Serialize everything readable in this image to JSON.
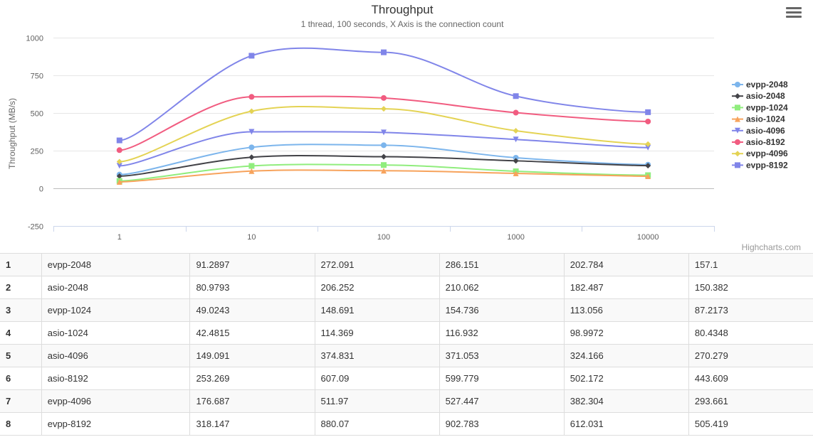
{
  "menu": {
    "icon": "hamburger-menu-icon"
  },
  "credits": "Highcharts.com",
  "chart_data": {
    "type": "line",
    "title": "Throughput",
    "subtitle": "1 thread, 100 seconds, X Axis is the connection count",
    "ylabel": "Throughput (MB/s)",
    "xlabel": "",
    "categories": [
      "1",
      "10",
      "100",
      "1000",
      "10000"
    ],
    "ylim": [
      -250,
      1000
    ],
    "yticks": [
      "-250",
      "0",
      "250",
      "500",
      "750",
      "1000"
    ],
    "grid": true,
    "legend_position": "right",
    "series": [
      {
        "name": "evpp-2048",
        "color": "#7cb5ec",
        "marker": "circle",
        "values": [
          91.2897,
          272.091,
          286.151,
          202.784,
          157.1
        ]
      },
      {
        "name": "asio-2048",
        "color": "#434348",
        "marker": "diamond",
        "values": [
          80.9793,
          206.252,
          210.062,
          182.487,
          150.382
        ]
      },
      {
        "name": "evpp-1024",
        "color": "#90ed7d",
        "marker": "square",
        "values": [
          49.0243,
          148.691,
          154.736,
          113.056,
          87.2173
        ]
      },
      {
        "name": "asio-1024",
        "color": "#f7a35c",
        "marker": "triangle",
        "values": [
          42.4815,
          114.369,
          116.932,
          98.9972,
          80.4348
        ]
      },
      {
        "name": "asio-4096",
        "color": "#8085e9",
        "marker": "triangle-down",
        "values": [
          149.091,
          374.831,
          371.053,
          324.166,
          270.279
        ]
      },
      {
        "name": "asio-8192",
        "color": "#f15c80",
        "marker": "circle",
        "values": [
          253.269,
          607.09,
          599.779,
          502.172,
          443.609
        ]
      },
      {
        "name": "evpp-4096",
        "color": "#e4d354",
        "marker": "diamond",
        "values": [
          176.687,
          511.97,
          527.447,
          382.304,
          293.661
        ]
      },
      {
        "name": "evpp-8192",
        "color": "#8085e9",
        "marker": "square",
        "values": [
          318.147,
          880.07,
          902.783,
          612.031,
          505.419
        ]
      }
    ]
  },
  "table": {
    "rows": [
      {
        "idx": "1",
        "name": "evpp-2048",
        "v": [
          "91.2897",
          "272.091",
          "286.151",
          "202.784",
          "157.1"
        ]
      },
      {
        "idx": "2",
        "name": "asio-2048",
        "v": [
          "80.9793",
          "206.252",
          "210.062",
          "182.487",
          "150.382"
        ]
      },
      {
        "idx": "3",
        "name": "evpp-1024",
        "v": [
          "49.0243",
          "148.691",
          "154.736",
          "113.056",
          "87.2173"
        ]
      },
      {
        "idx": "4",
        "name": "asio-1024",
        "v": [
          "42.4815",
          "114.369",
          "116.932",
          "98.9972",
          "80.4348"
        ]
      },
      {
        "idx": "5",
        "name": "asio-4096",
        "v": [
          "149.091",
          "374.831",
          "371.053",
          "324.166",
          "270.279"
        ]
      },
      {
        "idx": "6",
        "name": "asio-8192",
        "v": [
          "253.269",
          "607.09",
          "599.779",
          "502.172",
          "443.609"
        ]
      },
      {
        "idx": "7",
        "name": "evpp-4096",
        "v": [
          "176.687",
          "511.97",
          "527.447",
          "382.304",
          "293.661"
        ]
      },
      {
        "idx": "8",
        "name": "evpp-8192",
        "v": [
          "318.147",
          "880.07",
          "902.783",
          "612.031",
          "505.419"
        ]
      }
    ]
  }
}
